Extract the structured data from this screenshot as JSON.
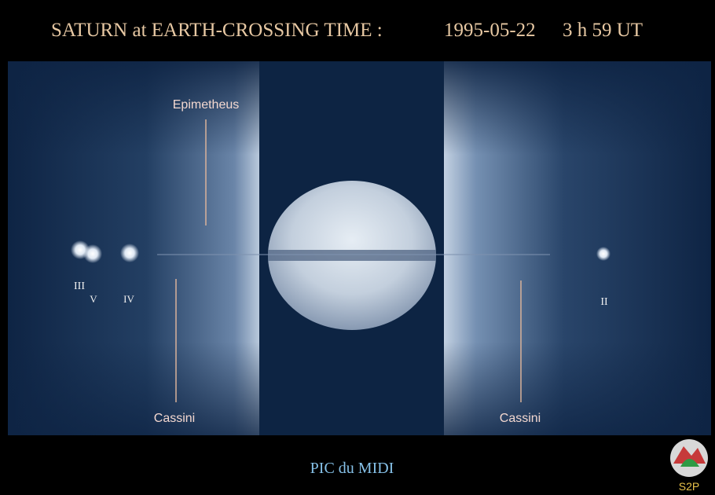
{
  "header": {
    "title": "SATURN at EARTH-CROSSING TIME :",
    "date": "1995-05-22",
    "time": "3 h 59 UT"
  },
  "labels": {
    "top": "Epimetheus",
    "bottom_left": "Cassini",
    "bottom_right": "Cassini"
  },
  "moons": [
    "III",
    "V",
    "IV",
    "II"
  ],
  "footer": {
    "location": "PIC du MIDI",
    "logo": "S2P"
  }
}
